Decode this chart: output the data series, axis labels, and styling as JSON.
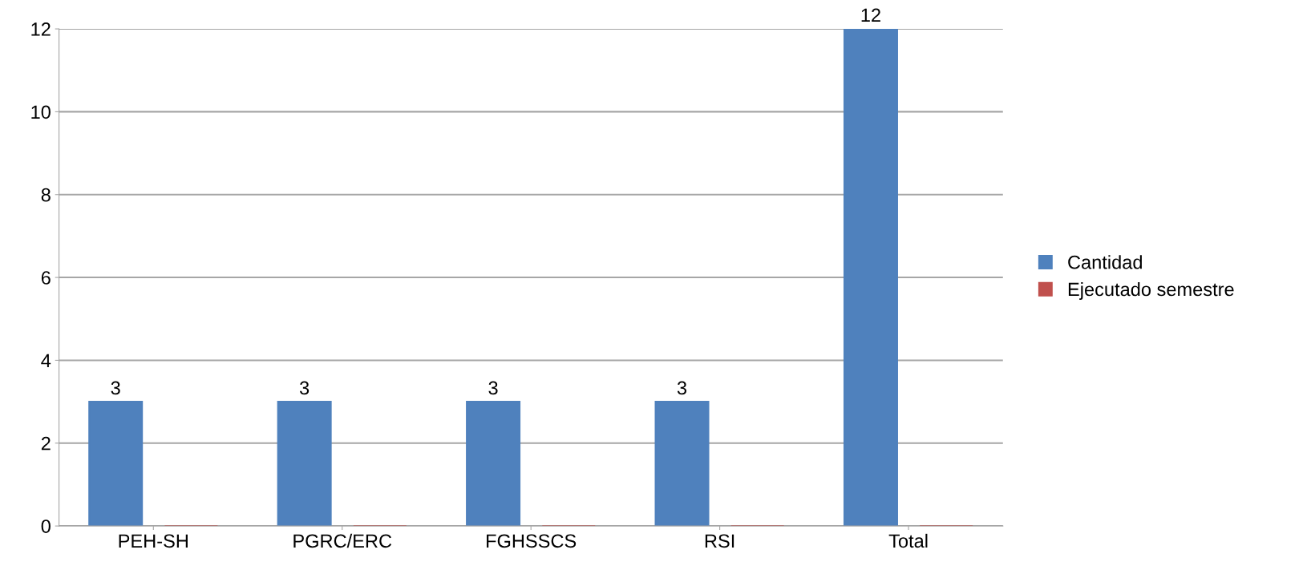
{
  "chart_data": {
    "type": "bar",
    "categories": [
      "PEH-SH",
      "PGRC/ERC",
      "FGHSSCS",
      "RSI",
      "Total"
    ],
    "series": [
      {
        "name": "Cantidad",
        "color": "#4f81bd",
        "values": [
          3,
          3,
          3,
          3,
          12
        ],
        "value_labels": [
          "3",
          "3",
          "3",
          "3",
          "12"
        ]
      },
      {
        "name": "Ejecutado semestre",
        "color": "#c0504d",
        "values": [
          0,
          0,
          0,
          0,
          0
        ]
      }
    ],
    "ylim": [
      0,
      12
    ],
    "yticks": [
      0,
      2,
      4,
      6,
      8,
      10,
      12
    ],
    "grid": "y",
    "legend": "right"
  }
}
